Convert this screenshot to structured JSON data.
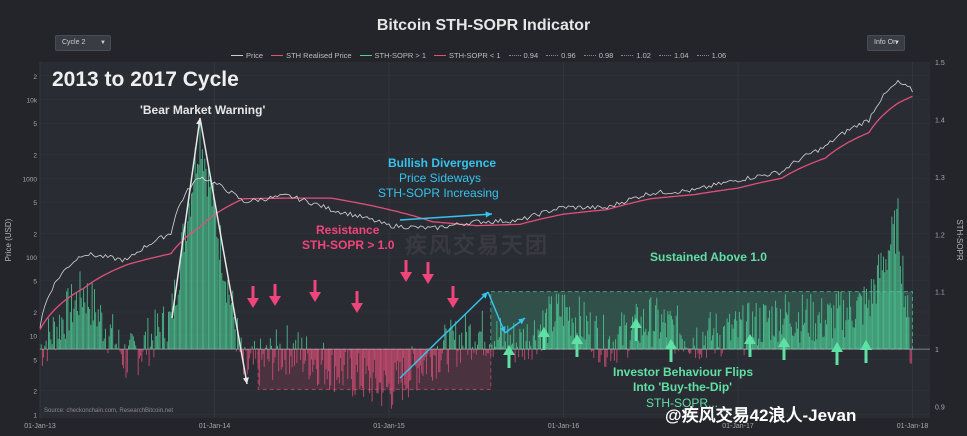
{
  "title": "Bitcoin STH-SOPR Indicator",
  "controls": {
    "cycle_select": "Cycle 2",
    "info_select": "Info On"
  },
  "legend": [
    {
      "label": "Price",
      "color": "#cccccc",
      "style": "solid"
    },
    {
      "label": "STH Realised Price",
      "color": "#e0507a",
      "style": "solid"
    },
    {
      "label": "STH-SOPR > 1",
      "color": "#4fd29a",
      "style": "solid"
    },
    {
      "label": "STH-SOPR < 1",
      "color": "#e0507a",
      "style": "solid"
    },
    {
      "label": "0.94",
      "color": "#888888",
      "style": "dotted"
    },
    {
      "label": "0.96",
      "color": "#888888",
      "style": "dotted"
    },
    {
      "label": "0.98",
      "color": "#888888",
      "style": "dotted"
    },
    {
      "label": "1.02",
      "color": "#888888",
      "style": "dotted"
    },
    {
      "label": "1.04",
      "color": "#888888",
      "style": "dotted"
    },
    {
      "label": "1.06",
      "color": "#888888",
      "style": "dotted"
    }
  ],
  "annotations": {
    "cycle_heading": "2013 to 2017 Cycle",
    "bear_warning": "'Bear Market Warning'",
    "bullish_title": "Bullish Divergence",
    "bullish_line1": "Price Sideways",
    "bullish_line2": "STH-SOPR Increasing",
    "resistance_title": "Resistance",
    "resistance_line": "STH-SOPR > 1.0",
    "sustained": "Sustained Above 1.0",
    "investor_line1": "Investor Behaviour Flips",
    "investor_line2": "Into 'Buy-the-Dip'",
    "investor_line3": "STH-SOPR...",
    "source": "Source: checkonchain.com, ResearchBitcoin.net",
    "watermark_center": "疾风交易天团",
    "watermark_bottom": "@疾风交易42浪人-Jevan"
  },
  "chart_data": {
    "type": "line",
    "x_tick_labels": [
      "01-Jan-13",
      "01-Jan-14",
      "01-Jan-15",
      "01-Jan-16",
      "01-Jan-17",
      "01-Jan-18"
    ],
    "ylabel_left": "Price (USD)",
    "ylabel_right": "STH-SOPR",
    "y_left_scale": "log",
    "y_left_ticks": [
      "1",
      "2",
      "5",
      "10",
      "2",
      "5",
      "100",
      "2",
      "5",
      "1000",
      "2",
      "5",
      "10k",
      "2"
    ],
    "y_right_ticks": [
      "0.9",
      "1",
      "1.1",
      "1.2",
      "1.3",
      "1.4",
      "1.5"
    ],
    "ylim_right": [
      0.88,
      1.5
    ],
    "x": [
      "2013-01",
      "2013-04",
      "2013-07",
      "2013-10",
      "2013-12",
      "2014-03",
      "2014-06",
      "2014-09",
      "2015-01",
      "2015-04",
      "2015-07",
      "2015-10",
      "2016-01",
      "2016-04",
      "2016-07",
      "2016-10",
      "2017-01",
      "2017-04",
      "2017-07",
      "2017-10",
      "2017-12",
      "2018-01"
    ],
    "series": [
      {
        "name": "Price",
        "values": [
          13,
          110,
          90,
          200,
          1050,
          500,
          600,
          400,
          250,
          230,
          280,
          290,
          430,
          420,
          650,
          700,
          950,
          1200,
          2500,
          5500,
          16500,
          13000
        ]
      },
      {
        "name": "STH Realised Price",
        "values": [
          12,
          40,
          80,
          110,
          240,
          550,
          560,
          560,
          400,
          280,
          250,
          260,
          350,
          400,
          550,
          620,
          750,
          1000,
          1800,
          3800,
          9000,
          11000
        ]
      },
      {
        "name": "STH-SOPR",
        "values": [
          1.0,
          1.1,
          0.98,
          1.05,
          1.38,
          0.96,
          1.0,
          0.97,
          0.93,
          0.99,
          1.03,
          1.01,
          1.07,
          1.01,
          1.05,
          1.02,
          1.03,
          1.06,
          1.05,
          1.08,
          1.22,
          0.97
        ]
      }
    ],
    "shaded_regions": [
      {
        "label": "Resistance",
        "x_start": "2014-04",
        "x_end": "2015-08",
        "y_range": [
          0.93,
          1.0
        ],
        "color": "#e0507a"
      },
      {
        "label": "Sustained Above 1.0",
        "x_start": "2015-08",
        "x_end": "2018-01",
        "y_range": [
          1.0,
          1.1
        ],
        "color": "#4fd29a"
      }
    ],
    "reference_line": 1.0,
    "grid": true,
    "legend_placement": "top"
  }
}
